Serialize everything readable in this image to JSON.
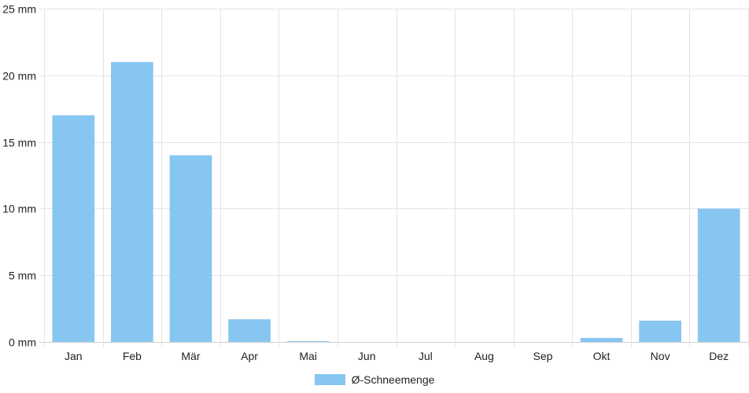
{
  "chart_data": {
    "type": "bar",
    "categories": [
      "Jan",
      "Feb",
      "Mär",
      "Apr",
      "Mai",
      "Jun",
      "Jul",
      "Aug",
      "Sep",
      "Okt",
      "Nov",
      "Dez"
    ],
    "series": [
      {
        "name": "Ø-Schneemenge",
        "values": [
          17,
          21,
          14,
          1.7,
          0.05,
          0,
          0,
          0,
          0,
          0.3,
          1.6,
          10
        ],
        "color": "#88c6f2"
      }
    ],
    "ylim": [
      0,
      25
    ],
    "yticks": [
      0,
      5,
      10,
      15,
      20,
      25
    ],
    "ytick_labels": [
      "0 mm",
      "5 mm",
      "10 mm",
      "15 mm",
      "20 mm",
      "25 mm"
    ],
    "grid": true,
    "legend_position": "bottom-center"
  }
}
